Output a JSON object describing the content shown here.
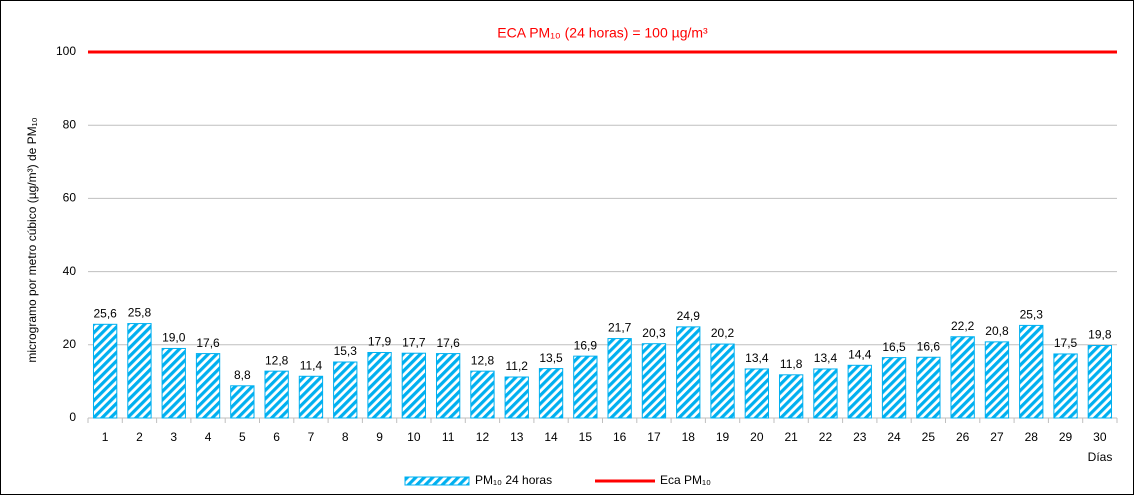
{
  "chart_data": {
    "type": "bar",
    "y_axis_label": "microgramo por metro cúbico (µg/m³) de PM₁₀",
    "x_axis_label": "Días",
    "categories": [
      "1",
      "2",
      "3",
      "4",
      "5",
      "6",
      "7",
      "8",
      "9",
      "10",
      "11",
      "12",
      "13",
      "14",
      "15",
      "16",
      "17",
      "18",
      "19",
      "20",
      "21",
      "22",
      "23",
      "24",
      "25",
      "26",
      "27",
      "28",
      "29",
      "30"
    ],
    "series": [
      {
        "name": "PM₁₀ 24 horas",
        "color": "#00b0f0",
        "values": [
          25.6,
          25.8,
          19.0,
          17.6,
          8.8,
          12.8,
          11.4,
          15.3,
          17.9,
          17.7,
          17.6,
          12.8,
          11.2,
          13.5,
          16.9,
          21.7,
          20.3,
          24.9,
          20.2,
          13.4,
          11.8,
          13.4,
          14.4,
          16.5,
          16.6,
          22.2,
          20.8,
          25.3,
          17.5,
          19.8
        ],
        "value_labels": [
          "25,6",
          "25,8",
          "19,0",
          "17,6",
          "8,8",
          "12,8",
          "11,4",
          "15,3",
          "17,9",
          "17,7",
          "17,6",
          "12,8",
          "11,2",
          "13,5",
          "16,9",
          "21,7",
          "20,3",
          "24,9",
          "20,2",
          "13,4",
          "11,8",
          "13,4",
          "14,4",
          "16,5",
          "16,6",
          "22,2",
          "20,8",
          "25,3",
          "17,5",
          "19,8"
        ]
      }
    ],
    "reference_line": {
      "name": "Eca PM₁₀",
      "value": 100,
      "color": "#ff0000",
      "label": "ECA PM₁₀ (24 horas) = 100 µg/m³"
    },
    "ylim": [
      0,
      108
    ],
    "yticks": [
      0,
      20,
      40,
      60,
      80,
      100
    ],
    "grid": true,
    "legend": "bottom"
  }
}
